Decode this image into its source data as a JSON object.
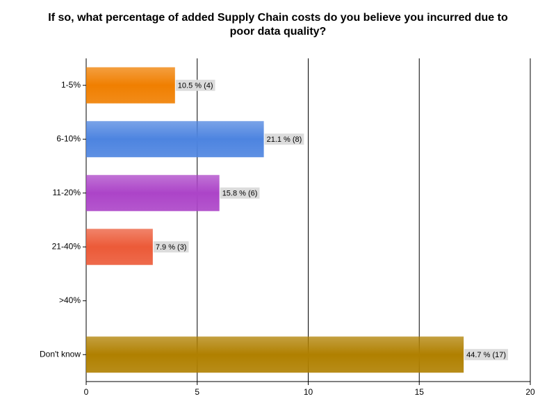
{
  "chart_data": {
    "type": "bar",
    "orientation": "horizontal",
    "title": "If so, what percentage of added Supply Chain costs do you believe you incurred due to poor data quality?",
    "categories": [
      "1-5%",
      "6-10%",
      "11-20%",
      "21-40%",
      ">40%",
      "Don't know"
    ],
    "values": [
      4,
      8,
      6,
      3,
      0,
      17
    ],
    "value_labels": [
      "10.5 % (4)",
      "21.1 % (8)",
      "15.8 % (6)",
      "7.9 % (3)",
      null,
      "44.7 % (17)"
    ],
    "colors": [
      "#f07f00",
      "#4d84e0",
      "#ac44c8",
      "#ec5a38",
      null,
      "#b08000"
    ],
    "xlim": [
      0,
      20
    ],
    "xticks": [
      0,
      5,
      10,
      15,
      20
    ],
    "grid": true
  }
}
